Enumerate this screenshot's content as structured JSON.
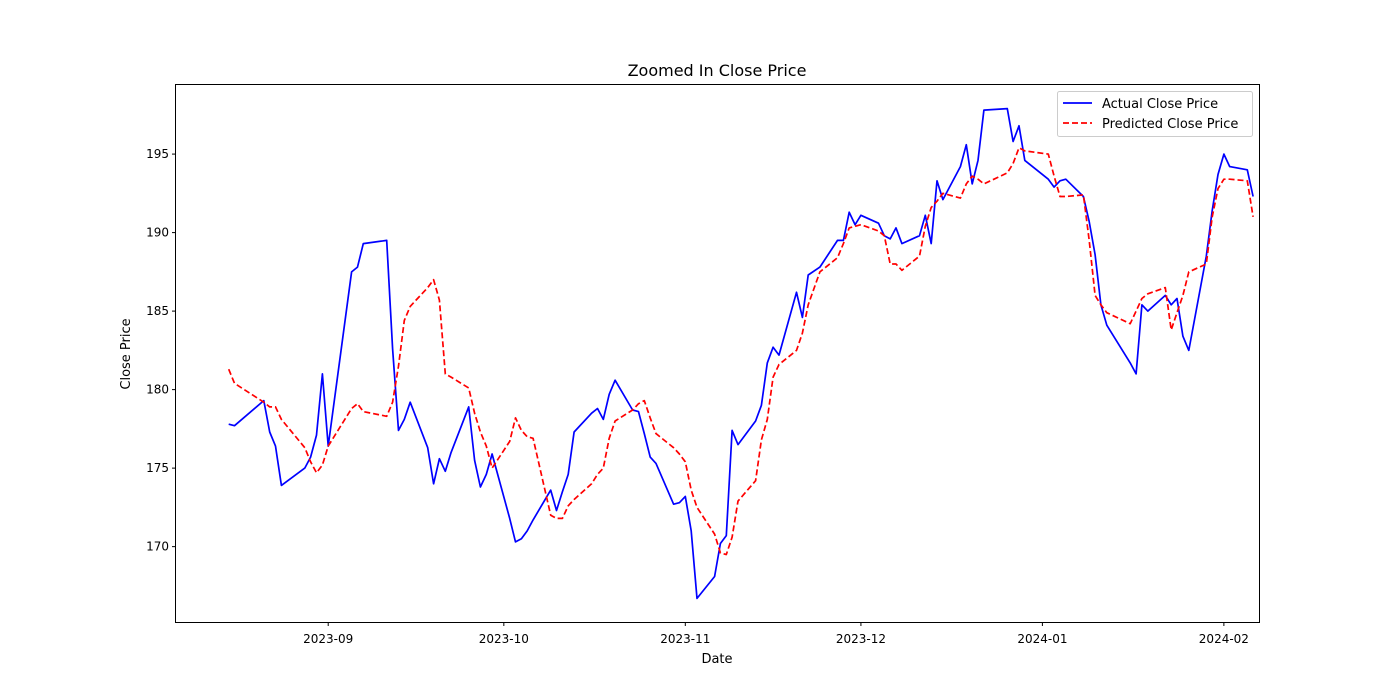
{
  "chart_data": {
    "type": "line",
    "title": "Zoomed In Close Price",
    "xlabel": "Date",
    "ylabel": "Close Price",
    "xlim": [
      "2023-08-06",
      "2024-02-07"
    ],
    "ylim": [
      165.2,
      199.4
    ],
    "x_ticks": [
      "2023-09-01",
      "2023-10-01",
      "2023-11-01",
      "2023-12-01",
      "2024-01-01",
      "2024-02-01"
    ],
    "x_tick_labels": [
      "2023-09",
      "2023-10",
      "2023-11",
      "2023-12",
      "2024-01",
      "2024-02"
    ],
    "y_ticks": [
      170,
      175,
      180,
      185,
      190,
      195
    ],
    "grid": false,
    "legend_position": "top-right",
    "series": [
      {
        "name": "Actual Close Price",
        "color": "#0000ff",
        "dash": "solid",
        "points": [
          [
            "2023-08-15",
            177.8
          ],
          [
            "2023-08-16",
            177.7
          ],
          [
            "2023-08-21",
            179.3
          ],
          [
            "2023-08-22",
            177.3
          ],
          [
            "2023-08-23",
            176.4
          ],
          [
            "2023-08-24",
            173.9
          ],
          [
            "2023-08-28",
            175.0
          ],
          [
            "2023-08-29",
            175.7
          ],
          [
            "2023-08-30",
            177.1
          ],
          [
            "2023-08-31",
            181.0
          ],
          [
            "2023-09-01",
            176.4
          ],
          [
            "2023-09-05",
            187.5
          ],
          [
            "2023-09-06",
            187.8
          ],
          [
            "2023-09-07",
            189.3
          ],
          [
            "2023-09-11",
            189.5
          ],
          [
            "2023-09-12",
            182.6
          ],
          [
            "2023-09-13",
            177.4
          ],
          [
            "2023-09-14",
            178.1
          ],
          [
            "2023-09-15",
            179.2
          ],
          [
            "2023-09-18",
            176.3
          ],
          [
            "2023-09-19",
            174.0
          ],
          [
            "2023-09-20",
            175.6
          ],
          [
            "2023-09-21",
            174.8
          ],
          [
            "2023-09-22",
            176.0
          ],
          [
            "2023-09-25",
            178.9
          ],
          [
            "2023-09-26",
            175.5
          ],
          [
            "2023-09-27",
            173.8
          ],
          [
            "2023-09-28",
            174.6
          ],
          [
            "2023-09-29",
            175.9
          ],
          [
            "2023-10-02",
            171.8
          ],
          [
            "2023-10-03",
            170.3
          ],
          [
            "2023-10-04",
            170.5
          ],
          [
            "2023-10-05",
            171.0
          ],
          [
            "2023-10-06",
            171.7
          ],
          [
            "2023-10-09",
            173.6
          ],
          [
            "2023-10-10",
            172.3
          ],
          [
            "2023-10-11",
            173.5
          ],
          [
            "2023-10-12",
            174.6
          ],
          [
            "2023-10-13",
            177.3
          ],
          [
            "2023-10-16",
            178.5
          ],
          [
            "2023-10-17",
            178.8
          ],
          [
            "2023-10-18",
            178.1
          ],
          [
            "2023-10-19",
            179.7
          ],
          [
            "2023-10-20",
            180.6
          ],
          [
            "2023-10-23",
            178.7
          ],
          [
            "2023-10-24",
            178.6
          ],
          [
            "2023-10-25",
            177.2
          ],
          [
            "2023-10-26",
            175.7
          ],
          [
            "2023-10-27",
            175.3
          ],
          [
            "2023-10-30",
            172.7
          ],
          [
            "2023-10-31",
            172.8
          ],
          [
            "2023-11-01",
            173.2
          ],
          [
            "2023-11-02",
            171.0
          ],
          [
            "2023-11-03",
            166.7
          ],
          [
            "2023-11-06",
            168.1
          ],
          [
            "2023-11-07",
            170.2
          ],
          [
            "2023-11-08",
            170.7
          ],
          [
            "2023-11-09",
            177.4
          ],
          [
            "2023-11-10",
            176.5
          ],
          [
            "2023-11-13",
            178.0
          ],
          [
            "2023-11-14",
            179.0
          ],
          [
            "2023-11-15",
            181.7
          ],
          [
            "2023-11-16",
            182.7
          ],
          [
            "2023-11-17",
            182.2
          ],
          [
            "2023-11-20",
            186.2
          ],
          [
            "2023-11-21",
            184.6
          ],
          [
            "2023-11-22",
            187.3
          ],
          [
            "2023-11-24",
            187.8
          ],
          [
            "2023-11-27",
            189.5
          ],
          [
            "2023-11-28",
            189.5
          ],
          [
            "2023-11-29",
            191.3
          ],
          [
            "2023-11-30",
            190.5
          ],
          [
            "2023-12-01",
            191.1
          ],
          [
            "2023-12-04",
            190.6
          ],
          [
            "2023-12-05",
            189.8
          ],
          [
            "2023-12-06",
            189.6
          ],
          [
            "2023-12-07",
            190.3
          ],
          [
            "2023-12-08",
            189.3
          ],
          [
            "2023-12-11",
            189.8
          ],
          [
            "2023-12-12",
            191.1
          ],
          [
            "2023-12-13",
            189.3
          ],
          [
            "2023-12-14",
            193.3
          ],
          [
            "2023-12-15",
            192.1
          ],
          [
            "2023-12-18",
            194.2
          ],
          [
            "2023-12-19",
            195.6
          ],
          [
            "2023-12-20",
            193.1
          ],
          [
            "2023-12-21",
            194.6
          ],
          [
            "2023-12-22",
            197.8
          ],
          [
            "2023-12-26",
            197.9
          ],
          [
            "2023-12-27",
            195.8
          ],
          [
            "2023-12-28",
            196.8
          ],
          [
            "2023-12-29",
            194.6
          ],
          [
            "2024-01-02",
            193.4
          ],
          [
            "2024-01-03",
            192.9
          ],
          [
            "2024-01-04",
            193.3
          ],
          [
            "2024-01-05",
            193.4
          ],
          [
            "2024-01-08",
            192.3
          ],
          [
            "2024-01-09",
            190.7
          ],
          [
            "2024-01-10",
            188.6
          ],
          [
            "2024-01-11",
            185.4
          ],
          [
            "2024-01-12",
            184.1
          ],
          [
            "2024-01-16",
            181.7
          ],
          [
            "2024-01-17",
            181.0
          ],
          [
            "2024-01-18",
            185.4
          ],
          [
            "2024-01-19",
            185.0
          ],
          [
            "2024-01-22",
            186.0
          ],
          [
            "2024-01-23",
            185.4
          ],
          [
            "2024-01-24",
            185.8
          ],
          [
            "2024-01-25",
            183.4
          ],
          [
            "2024-01-26",
            182.5
          ],
          [
            "2024-01-29",
            188.5
          ],
          [
            "2024-01-30",
            191.4
          ],
          [
            "2024-01-31",
            193.7
          ],
          [
            "2024-02-01",
            195.0
          ],
          [
            "2024-02-02",
            194.2
          ],
          [
            "2024-02-05",
            194.0
          ],
          [
            "2024-02-06",
            192.3
          ]
        ]
      },
      {
        "name": "Predicted Close Price",
        "color": "#ff0000",
        "dash": "dashed",
        "points": [
          [
            "2023-08-15",
            181.3
          ],
          [
            "2023-08-16",
            180.4
          ],
          [
            "2023-08-21",
            179.2
          ],
          [
            "2023-08-22",
            178.9
          ],
          [
            "2023-08-23",
            178.9
          ],
          [
            "2023-08-24",
            178.1
          ],
          [
            "2023-08-28",
            176.3
          ],
          [
            "2023-08-29",
            175.4
          ],
          [
            "2023-08-30",
            174.7
          ],
          [
            "2023-08-31",
            175.2
          ],
          [
            "2023-09-01",
            176.4
          ],
          [
            "2023-09-05",
            178.8
          ],
          [
            "2023-09-06",
            179.1
          ],
          [
            "2023-09-07",
            178.6
          ],
          [
            "2023-09-11",
            178.3
          ],
          [
            "2023-09-12",
            179.2
          ],
          [
            "2023-09-13",
            181.5
          ],
          [
            "2023-09-14",
            184.4
          ],
          [
            "2023-09-15",
            185.3
          ],
          [
            "2023-09-18",
            186.5
          ],
          [
            "2023-09-19",
            187.0
          ],
          [
            "2023-09-20",
            185.7
          ],
          [
            "2023-09-21",
            181.0
          ],
          [
            "2023-09-22",
            180.8
          ],
          [
            "2023-09-25",
            180.1
          ],
          [
            "2023-09-26",
            178.5
          ],
          [
            "2023-09-27",
            177.3
          ],
          [
            "2023-09-28",
            176.4
          ],
          [
            "2023-09-29",
            175.0
          ],
          [
            "2023-10-02",
            176.7
          ],
          [
            "2023-10-03",
            178.2
          ],
          [
            "2023-10-04",
            177.4
          ],
          [
            "2023-10-05",
            177.0
          ],
          [
            "2023-10-06",
            176.9
          ],
          [
            "2023-10-09",
            172.0
          ],
          [
            "2023-10-10",
            171.8
          ],
          [
            "2023-10-11",
            171.8
          ],
          [
            "2023-10-12",
            172.6
          ],
          [
            "2023-10-13",
            173.0
          ],
          [
            "2023-10-16",
            174.0
          ],
          [
            "2023-10-17",
            174.6
          ],
          [
            "2023-10-18",
            175.0
          ],
          [
            "2023-10-19",
            176.9
          ],
          [
            "2023-10-20",
            178.0
          ],
          [
            "2023-10-23",
            178.7
          ],
          [
            "2023-10-24",
            179.1
          ],
          [
            "2023-10-25",
            179.3
          ],
          [
            "2023-10-26",
            178.2
          ],
          [
            "2023-10-27",
            177.2
          ],
          [
            "2023-10-30",
            176.3
          ],
          [
            "2023-10-31",
            175.9
          ],
          [
            "2023-11-01",
            175.4
          ],
          [
            "2023-11-02",
            173.6
          ],
          [
            "2023-11-03",
            172.5
          ],
          [
            "2023-11-06",
            170.8
          ],
          [
            "2023-11-07",
            169.6
          ],
          [
            "2023-11-08",
            169.5
          ],
          [
            "2023-11-09",
            170.6
          ],
          [
            "2023-11-10",
            172.9
          ],
          [
            "2023-11-13",
            174.2
          ],
          [
            "2023-11-14",
            176.8
          ],
          [
            "2023-11-15",
            178.1
          ],
          [
            "2023-11-16",
            180.8
          ],
          [
            "2023-11-17",
            181.6
          ],
          [
            "2023-11-20",
            182.5
          ],
          [
            "2023-11-21",
            183.6
          ],
          [
            "2023-11-22",
            185.4
          ],
          [
            "2023-11-24",
            187.5
          ],
          [
            "2023-11-27",
            188.4
          ],
          [
            "2023-11-28",
            189.3
          ],
          [
            "2023-11-29",
            190.3
          ],
          [
            "2023-11-30",
            190.4
          ],
          [
            "2023-12-01",
            190.5
          ],
          [
            "2023-12-04",
            190.1
          ],
          [
            "2023-12-05",
            189.8
          ],
          [
            "2023-12-06",
            188.0
          ],
          [
            "2023-12-07",
            188.0
          ],
          [
            "2023-12-08",
            187.6
          ],
          [
            "2023-12-11",
            188.5
          ],
          [
            "2023-12-12",
            190.4
          ],
          [
            "2023-12-13",
            191.6
          ],
          [
            "2023-12-14",
            192.0
          ],
          [
            "2023-12-15",
            192.5
          ],
          [
            "2023-12-18",
            192.2
          ],
          [
            "2023-12-19",
            193.1
          ],
          [
            "2023-12-20",
            193.6
          ],
          [
            "2023-12-21",
            193.4
          ],
          [
            "2023-12-22",
            193.1
          ],
          [
            "2023-12-26",
            193.8
          ],
          [
            "2023-12-27",
            194.4
          ],
          [
            "2023-12-28",
            195.4
          ],
          [
            "2023-12-29",
            195.2
          ],
          [
            "2024-01-02",
            195.0
          ],
          [
            "2024-01-03",
            193.6
          ],
          [
            "2024-01-04",
            192.3
          ],
          [
            "2024-01-05",
            192.3
          ],
          [
            "2024-01-08",
            192.4
          ],
          [
            "2024-01-09",
            189.5
          ],
          [
            "2024-01-10",
            186.0
          ],
          [
            "2024-01-11",
            185.4
          ],
          [
            "2024-01-12",
            184.9
          ],
          [
            "2024-01-16",
            184.2
          ],
          [
            "2024-01-17",
            185.0
          ],
          [
            "2024-01-18",
            185.8
          ],
          [
            "2024-01-19",
            186.1
          ],
          [
            "2024-01-22",
            186.5
          ],
          [
            "2024-01-23",
            183.8
          ],
          [
            "2024-01-24",
            184.9
          ],
          [
            "2024-01-25",
            186.0
          ],
          [
            "2024-01-26",
            187.5
          ],
          [
            "2024-01-29",
            188.0
          ],
          [
            "2024-01-30",
            191.0
          ],
          [
            "2024-01-31",
            192.8
          ],
          [
            "2024-02-01",
            193.4
          ],
          [
            "2024-02-02",
            193.4
          ],
          [
            "2024-02-05",
            193.3
          ],
          [
            "2024-02-06",
            191.0
          ]
        ]
      }
    ]
  }
}
